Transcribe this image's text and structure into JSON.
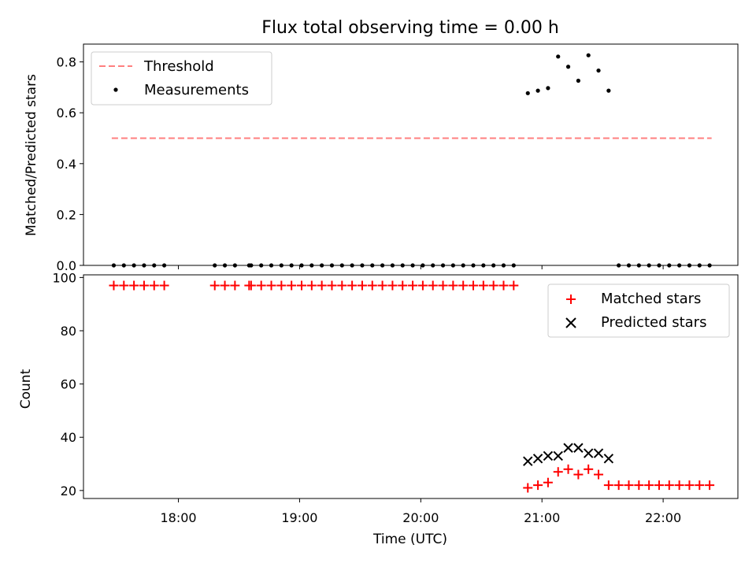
{
  "colors": {
    "threshold": "#ff7f7f",
    "measurements": "#000000",
    "matched": "#ff0000",
    "predicted": "#000000"
  },
  "chart_data": [
    {
      "panel": "top",
      "type": "scatter",
      "title": "Flux total observing time = 0.00 h",
      "ylabel": "Matched/Predicted stars",
      "xlabel": "",
      "xlim": [
        "17:13",
        "22:37"
      ],
      "ylim": [
        0,
        0.87
      ],
      "yticks": [
        "0.0",
        "0.2",
        "0.4",
        "0.6",
        "0.8"
      ],
      "legend": {
        "position": "upper left",
        "entries": [
          "Threshold",
          "Measurements"
        ]
      },
      "series": [
        {
          "name": "Threshold",
          "kind": "dashed-line",
          "x": [
            "17:27",
            "22:24"
          ],
          "y": [
            0.5,
            0.5
          ]
        },
        {
          "name": "Measurements",
          "kind": "dots",
          "x": [
            "17:28",
            "17:33",
            "17:38",
            "17:43",
            "17:48",
            "17:53",
            "18:18",
            "18:23",
            "18:28",
            "18:35",
            "18:36",
            "18:41",
            "18:46",
            "18:51",
            "18:56",
            "19:01",
            "19:06",
            "19:11",
            "19:16",
            "19:21",
            "19:26",
            "19:31",
            "19:36",
            "19:41",
            "19:46",
            "19:51",
            "19:56",
            "20:01",
            "20:06",
            "20:11",
            "20:16",
            "20:21",
            "20:26",
            "20:31",
            "20:36",
            "20:41",
            "20:46",
            "20:53",
            "20:58",
            "21:03",
            "21:08",
            "21:13",
            "21:18",
            "21:23",
            "21:28",
            "21:33",
            "21:38",
            "21:43",
            "21:48",
            "21:53",
            "21:58",
            "22:03",
            "22:08",
            "22:13",
            "22:18",
            "22:23"
          ],
          "y": [
            0,
            0,
            0,
            0,
            0,
            0,
            0,
            0,
            0,
            0,
            0,
            0,
            0,
            0,
            0,
            0,
            0,
            0,
            0,
            0,
            0,
            0,
            0,
            0,
            0,
            0,
            0,
            0,
            0,
            0,
            0,
            0,
            0,
            0,
            0,
            0,
            0,
            0.677,
            0.687,
            0.697,
            0.821,
            0.781,
            0.726,
            0.826,
            0.766,
            0.687,
            0,
            0,
            0,
            0,
            0,
            0,
            0,
            0,
            0,
            0
          ]
        }
      ]
    },
    {
      "panel": "bottom",
      "type": "scatter",
      "title": "",
      "ylabel": "Count",
      "xlabel": "Time (UTC)",
      "xlim": [
        "17:13",
        "22:37"
      ],
      "ylim": [
        17,
        101
      ],
      "yticks": [
        "20",
        "40",
        "60",
        "80",
        "100"
      ],
      "xticks": [
        "18:00",
        "19:00",
        "20:00",
        "21:00",
        "22:00"
      ],
      "legend": {
        "position": "upper right",
        "entries": [
          "Matched stars",
          "Predicted stars"
        ]
      },
      "series": [
        {
          "name": "Matched stars",
          "marker": "plus",
          "x": [
            "17:28",
            "17:33",
            "17:38",
            "17:43",
            "17:48",
            "17:53",
            "18:18",
            "18:23",
            "18:28",
            "18:35",
            "18:36",
            "18:41",
            "18:46",
            "18:51",
            "18:56",
            "19:01",
            "19:06",
            "19:11",
            "19:16",
            "19:21",
            "19:26",
            "19:31",
            "19:36",
            "19:41",
            "19:46",
            "19:51",
            "19:56",
            "20:01",
            "20:06",
            "20:11",
            "20:16",
            "20:21",
            "20:26",
            "20:31",
            "20:36",
            "20:41",
            "20:46",
            "20:53",
            "20:58",
            "21:03",
            "21:08",
            "21:13",
            "21:18",
            "21:23",
            "21:28",
            "21:33",
            "21:38",
            "21:43",
            "21:48",
            "21:53",
            "21:58",
            "22:03",
            "22:08",
            "22:13",
            "22:18",
            "22:23"
          ],
          "y": [
            97,
            97,
            97,
            97,
            97,
            97,
            97,
            97,
            97,
            97,
            97,
            97,
            97,
            97,
            97,
            97,
            97,
            97,
            97,
            97,
            97,
            97,
            97,
            97,
            97,
            97,
            97,
            97,
            97,
            97,
            97,
            97,
            97,
            97,
            97,
            97,
            97,
            21,
            22,
            23,
            27,
            28,
            26,
            28,
            26,
            22,
            22,
            22,
            22,
            22,
            22,
            22,
            22,
            22,
            22,
            22
          ]
        },
        {
          "name": "Predicted stars",
          "marker": "x",
          "x": [
            "20:53",
            "20:58",
            "21:03",
            "21:08",
            "21:13",
            "21:18",
            "21:23",
            "21:28",
            "21:33"
          ],
          "y": [
            31,
            32,
            33,
            33,
            36,
            36,
            34,
            34,
            32
          ]
        }
      ]
    }
  ]
}
